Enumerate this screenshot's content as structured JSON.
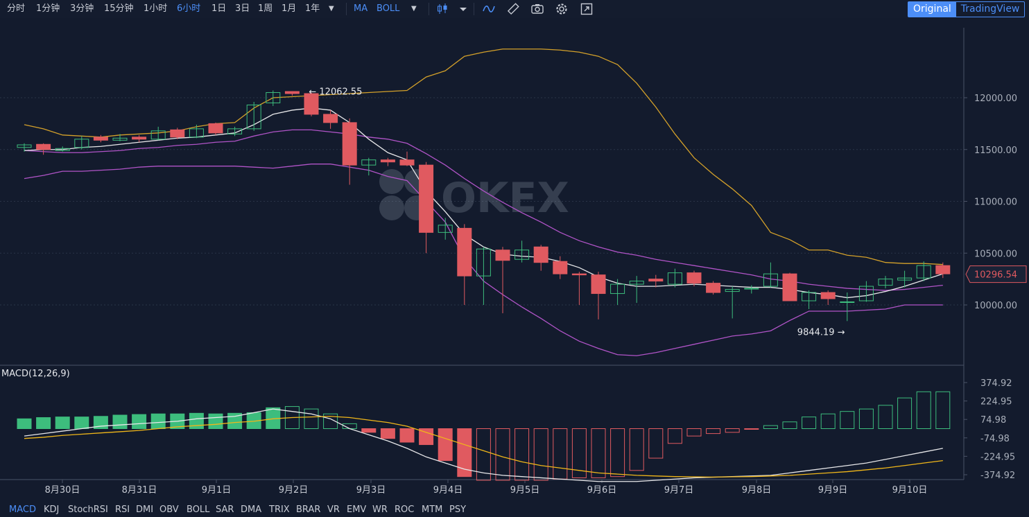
{
  "toolbar": {
    "periods": [
      "分时",
      "1分钟",
      "3分钟",
      "15分钟",
      "1小时",
      "6小时",
      "1日",
      "3日",
      "1周",
      "1月",
      "1年"
    ],
    "active_period": "6小时",
    "indicators_label": "MA",
    "boll_label": "BOLL",
    "view_original": "Original",
    "view_tradingview": "TradingView"
  },
  "indicators": [
    "MACD",
    "KDJ",
    "StochRSI",
    "RSI",
    "DMI",
    "OBV",
    "BOLL",
    "SAR",
    "DMA",
    "TRIX",
    "BRAR",
    "VR",
    "EMV",
    "WR",
    "ROC",
    "MTM",
    "PSY"
  ],
  "active_indicator": "MACD",
  "watermark": "OKEX",
  "macd_label": "MACD(12,26,9)",
  "colors": {
    "up": "#3dbd7d",
    "down": "#e05a60",
    "ma": "#e8e8ea",
    "boll_mid": "#d4a12a",
    "boll_band": "#b154c8",
    "macd_dif": "#e8e8ea",
    "macd_dea": "#f1b719",
    "accent": "#4c8ef7",
    "bg": "#131b2d"
  },
  "chart_data": {
    "type": "candlestick",
    "price_axis": {
      "ticks": [
        "12000.00",
        "11500.00",
        "11000.00",
        "10500.00",
        "10000.00"
      ],
      "values": [
        12000,
        11500,
        11000,
        10500,
        10000
      ]
    },
    "macd_axis": {
      "ticks": [
        "374.92",
        "224.95",
        "74.98",
        "-74.98",
        "-224.95",
        "-374.92"
      ],
      "values": [
        374.92,
        224.95,
        74.98,
        -74.98,
        -224.95,
        -374.92
      ]
    },
    "x_labels": [
      "8月30日",
      "8月31日",
      "9月1日",
      "9月2日",
      "9月3日",
      "9月4日",
      "9月5日",
      "9月6日",
      "9月7日",
      "9月8日",
      "9月9日",
      "9月10日"
    ],
    "high_marker": {
      "text": "12062.55",
      "value": 12062.55
    },
    "low_marker": {
      "text": "9844.19",
      "value": 9844.19
    },
    "last_price": {
      "text": "10296.54",
      "value": 10296.54
    },
    "candles": [
      [
        11520,
        11545,
        11560,
        11480
      ],
      [
        11550,
        11500,
        11560,
        11450
      ],
      [
        11490,
        11510,
        11530,
        11480
      ],
      [
        11520,
        11600,
        11630,
        11500
      ],
      [
        11620,
        11590,
        11640,
        11570
      ],
      [
        11590,
        11610,
        11650,
        11580
      ],
      [
        11620,
        11600,
        11640,
        11570
      ],
      [
        11600,
        11680,
        11720,
        11590
      ],
      [
        11690,
        11620,
        11710,
        11600
      ],
      [
        11620,
        11700,
        11740,
        11610
      ],
      [
        11750,
        11660,
        11760,
        11640
      ],
      [
        11650,
        11700,
        11720,
        11630
      ],
      [
        11700,
        11930,
        11960,
        11680
      ],
      [
        11950,
        12050,
        12070,
        11920
      ],
      [
        12060,
        12040,
        12062.55,
        12020
      ],
      [
        12040,
        11840,
        12050,
        11820
      ],
      [
        11840,
        11760,
        11880,
        11700
      ],
      [
        11760,
        11350,
        11800,
        11160
      ],
      [
        11350,
        11400,
        11420,
        11250
      ],
      [
        11400,
        11380,
        11420,
        11340
      ],
      [
        11400,
        11350,
        11480,
        11340
      ],
      [
        11350,
        10700,
        11380,
        10500
      ],
      [
        10700,
        10770,
        10840,
        10630
      ],
      [
        10740,
        10280,
        10780,
        10000
      ],
      [
        10280,
        10540,
        10560,
        10000
      ],
      [
        10530,
        10430,
        10560,
        9920
      ],
      [
        10440,
        10530,
        10620,
        10410
      ],
      [
        10560,
        10410,
        10580,
        10330
      ],
      [
        10420,
        10300,
        10470,
        10250
      ],
      [
        10300,
        10290,
        10320,
        10000
      ],
      [
        10290,
        10110,
        10320,
        9860
      ],
      [
        10110,
        10200,
        10250,
        10000
      ],
      [
        10200,
        10230,
        10280,
        10020
      ],
      [
        10250,
        10230,
        10290,
        10170
      ],
      [
        10200,
        10310,
        10350,
        10170
      ],
      [
        10310,
        10210,
        10330,
        10180
      ],
      [
        10210,
        10120,
        10230,
        10100
      ],
      [
        10130,
        10150,
        10180,
        9870
      ],
      [
        10160,
        10160,
        10190,
        10110
      ],
      [
        10180,
        10300,
        10410,
        10170
      ],
      [
        10300,
        10040,
        10310,
        10040
      ],
      [
        10040,
        10120,
        10140,
        9960
      ],
      [
        10120,
        10060,
        10140,
        10000
      ],
      [
        10030,
        10030,
        10120,
        9844.19
      ],
      [
        10040,
        10180,
        10230,
        10030
      ],
      [
        10190,
        10250,
        10280,
        10160
      ],
      [
        10240,
        10260,
        10330,
        10170
      ],
      [
        10260,
        10380,
        10420,
        10230
      ],
      [
        10380,
        10300,
        10410,
        10260
      ]
    ],
    "ma": [
      11490,
      11500,
      11500,
      11520,
      11530,
      11550,
      11570,
      11590,
      11610,
      11620,
      11640,
      11660,
      11740,
      11840,
      11880,
      11900,
      11880,
      11760,
      11600,
      11470,
      11400,
      11100,
      10900,
      10680,
      10560,
      10490,
      10470,
      10460,
      10420,
      10360,
      10270,
      10210,
      10180,
      10180,
      10190,
      10200,
      10190,
      10180,
      10170,
      10170,
      10150,
      10120,
      10100,
      10070,
      10090,
      10130,
      10180,
      10240,
      10300
    ],
    "boll_upper": [
      11740,
      11700,
      11640,
      11630,
      11620,
      11640,
      11650,
      11660,
      11680,
      11720,
      11750,
      11760,
      11900,
      12000,
      12010,
      12020,
      12030,
      12040,
      12050,
      12060,
      12070,
      12200,
      12260,
      12400,
      12440,
      12470,
      12470,
      12470,
      12460,
      12440,
      12400,
      12320,
      12140,
      11910,
      11650,
      11420,
      11260,
      11120,
      10960,
      10700,
      10630,
      10530,
      10530,
      10480,
      10460,
      10410,
      10400,
      10400,
      10390
    ],
    "boll_mid": [
      11490,
      11480,
      11470,
      11470,
      11480,
      11490,
      11510,
      11520,
      11540,
      11550,
      11570,
      11580,
      11630,
      11670,
      11690,
      11690,
      11670,
      11650,
      11620,
      11600,
      11560,
      11460,
      11350,
      11220,
      11100,
      10990,
      10890,
      10800,
      10700,
      10620,
      10560,
      10510,
      10480,
      10440,
      10410,
      10380,
      10350,
      10320,
      10290,
      10250,
      10230,
      10200,
      10180,
      10160,
      10150,
      10140,
      10150,
      10170,
      10190
    ],
    "boll_lower": [
      11220,
      11250,
      11290,
      11290,
      11300,
      11310,
      11330,
      11340,
      11340,
      11340,
      11340,
      11340,
      11330,
      11320,
      11340,
      11360,
      11360,
      11330,
      11300,
      11240,
      11200,
      11000,
      10800,
      10450,
      10230,
      10100,
      9980,
      9870,
      9750,
      9650,
      9580,
      9520,
      9510,
      9540,
      9580,
      9620,
      9660,
      9700,
      9720,
      9750,
      9850,
      9940,
      9940,
      9940,
      9950,
      9960,
      10000,
      10000,
      10000
    ],
    "macd_hist": [
      80,
      90,
      95,
      95,
      100,
      110,
      115,
      120,
      120,
      125,
      120,
      125,
      130,
      170,
      180,
      160,
      120,
      40,
      -30,
      -80,
      -110,
      -130,
      -260,
      -390,
      -420,
      -420,
      -420,
      -420,
      -410,
      -400,
      -400,
      -390,
      -340,
      -240,
      -120,
      -60,
      -40,
      -30,
      -5,
      25,
      55,
      95,
      120,
      140,
      160,
      190,
      250,
      300,
      300
    ],
    "macd_dif": [
      -60,
      -40,
      -20,
      0,
      20,
      30,
      40,
      50,
      60,
      80,
      90,
      100,
      130,
      160,
      140,
      120,
      80,
      0,
      -50,
      -100,
      -160,
      -230,
      -280,
      -330,
      -360,
      -380,
      -390,
      -400,
      -410,
      -420,
      -430,
      -430,
      -430,
      -420,
      -410,
      -400,
      -395,
      -390,
      -385,
      -380,
      -360,
      -340,
      -320,
      -300,
      -280,
      -250,
      -220,
      -190,
      -160
    ],
    "macd_dea": [
      -80,
      -70,
      -55,
      -45,
      -35,
      -25,
      -15,
      0,
      15,
      25,
      35,
      50,
      60,
      80,
      90,
      95,
      100,
      90,
      70,
      50,
      20,
      -30,
      -80,
      -130,
      -180,
      -230,
      -270,
      -300,
      -320,
      -340,
      -360,
      -370,
      -380,
      -385,
      -390,
      -392,
      -394,
      -392,
      -390,
      -385,
      -380,
      -370,
      -360,
      -350,
      -335,
      -320,
      -300,
      -280,
      -260
    ]
  }
}
